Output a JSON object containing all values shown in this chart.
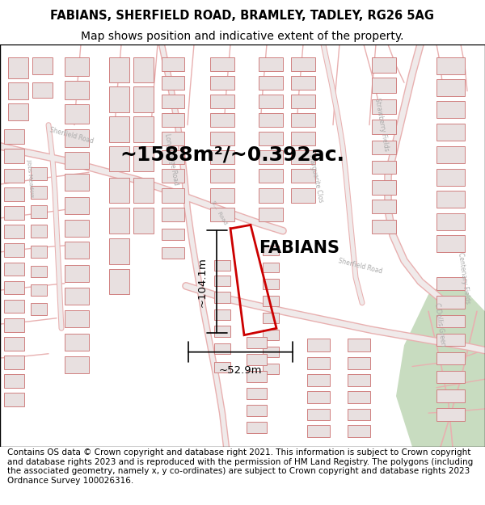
{
  "title_line1": "FABIANS, SHERFIELD ROAD, BRAMLEY, TADLEY, RG26 5AG",
  "title_line2": "Map shows position and indicative extent of the property.",
  "footer_text": "Contains OS data © Crown copyright and database right 2021. This information is subject to Crown copyright and database rights 2023 and is reproduced with the permission of HM Land Registry. The polygons (including the associated geometry, namely x, y co-ordinates) are subject to Crown copyright and database rights 2023 Ordnance Survey 100026316.",
  "area_label": "~1588m²/~0.392ac.",
  "property_label": "FABIANS",
  "dim_h": "~104.1m",
  "dim_w": "~52.9m",
  "bg_color": "#ffffff",
  "map_bg": "#faf8f8",
  "title_fontsize": 10.5,
  "footer_fontsize": 7.5,
  "area_fontsize": 18,
  "property_fontsize": 15,
  "dim_fontsize": 9.5,
  "map_color": "#faf8f8",
  "road_color": "#e8b0b0",
  "road_center_color": "#d0d0d0",
  "building_fill": "#e8e0e0",
  "building_edge": "#d08080",
  "plot_edge": "#cc0000",
  "green_color": "#c8dcc0",
  "road_label_color": "#aaaaaa"
}
